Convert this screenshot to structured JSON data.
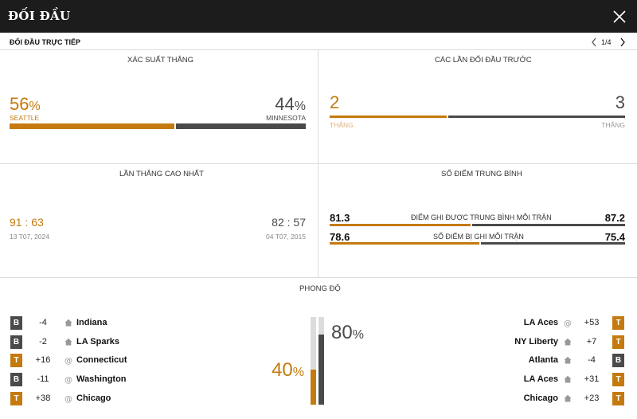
{
  "window": {
    "title": "ĐỐI ĐẦU",
    "close_icon": "close-icon"
  },
  "subheader": {
    "label": "ĐỐI ĐẦU TRỰC TIẾP",
    "page": "1/4"
  },
  "colors": {
    "home": "#c47a0e",
    "away": "#4a4a4a",
    "track": "#d9d9d9"
  },
  "win_probability": {
    "title": "XÁC SUẤT THẮNG",
    "home": {
      "value": "56",
      "unit": "%",
      "team": "SEATTLE"
    },
    "away": {
      "value": "44",
      "unit": "%",
      "team": "MINNESOTA"
    },
    "home_fraction": 0.56
  },
  "previous_meetings": {
    "title": "CÁC LẦN ĐỐI ĐẦU TRƯỚC",
    "home": {
      "value": "2",
      "label": "THẮNG"
    },
    "away": {
      "value": "3",
      "label": "THẮNG"
    },
    "home_fraction": 0.4
  },
  "biggest_win": {
    "title": "LẦN THẮNG CAO NHẤT",
    "home": {
      "score_a": "91",
      "sep": ":",
      "score_b": "63",
      "date": "13 T07, 2024"
    },
    "away": {
      "score_a": "82",
      "sep": ":",
      "score_b": "57",
      "date": "04 T07, 2015"
    }
  },
  "average_points": {
    "title": "SỐ ĐIỂM TRUNG BÌNH",
    "rows": [
      {
        "label": "ĐIỂM GHI ĐƯỢC TRUNG BÌNH MỖI TRẬN",
        "home": "81.3",
        "away": "87.2",
        "home_fraction": 0.48
      },
      {
        "label": "SỐ ĐIỂM BỊ GHI MỖI TRẬN",
        "home": "78.6",
        "away": "75.4",
        "home_fraction": 0.51
      }
    ]
  },
  "form": {
    "title": "PHONG ĐỘ",
    "home_pct": {
      "value": "40",
      "unit": "%"
    },
    "away_pct": {
      "value": "80",
      "unit": "%"
    },
    "home_fraction": 0.4,
    "away_fraction": 0.8,
    "home_games": [
      {
        "result": "B",
        "diff": "-4",
        "venue": "home",
        "team": "Indiana"
      },
      {
        "result": "B",
        "diff": "-2",
        "venue": "home",
        "team": "LA Sparks"
      },
      {
        "result": "T",
        "diff": "+16",
        "venue": "away",
        "team": "Connecticut"
      },
      {
        "result": "B",
        "diff": "-11",
        "venue": "away",
        "team": "Washington"
      },
      {
        "result": "T",
        "diff": "+38",
        "venue": "away",
        "team": "Chicago"
      }
    ],
    "away_games": [
      {
        "result": "T",
        "diff": "+53",
        "venue": "away",
        "team": "LA Aces"
      },
      {
        "result": "T",
        "diff": "+7",
        "venue": "home",
        "team": "NY Liberty"
      },
      {
        "result": "B",
        "diff": "-4",
        "venue": "home",
        "team": "Atlanta"
      },
      {
        "result": "T",
        "diff": "+31",
        "venue": "home",
        "team": "LA Aces"
      },
      {
        "result": "T",
        "diff": "+23",
        "venue": "home",
        "team": "Chicago"
      }
    ]
  }
}
